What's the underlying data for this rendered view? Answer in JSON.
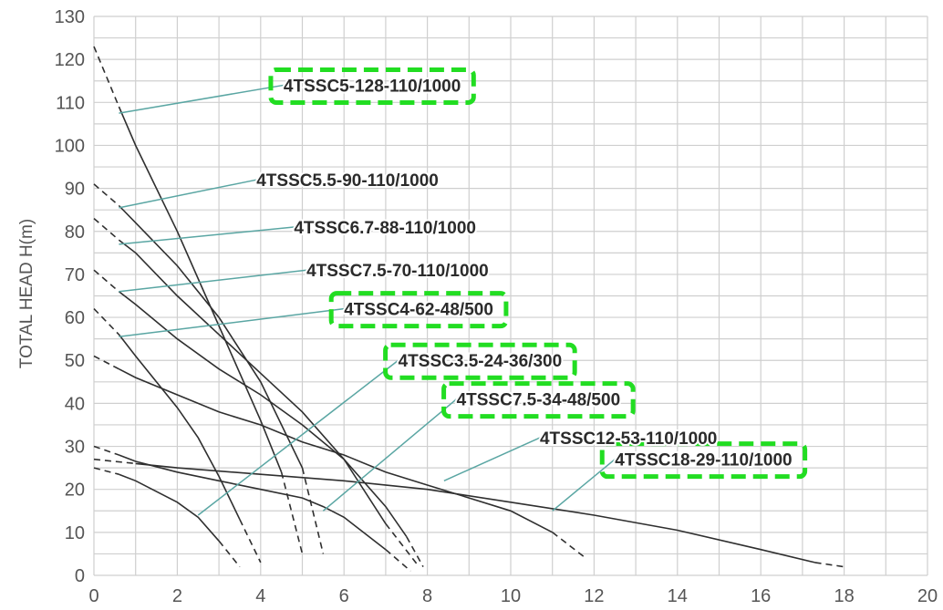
{
  "chart_data": {
    "type": "line",
    "title": "",
    "xlabel": "",
    "ylabel": "TOTAL HEAD H(m)",
    "xlim": [
      0,
      20
    ],
    "ylim": [
      0,
      130
    ],
    "x_ticks": [
      0,
      2,
      4,
      6,
      8,
      10,
      12,
      14,
      16,
      18,
      20
    ],
    "y_ticks": [
      0,
      10,
      20,
      30,
      40,
      50,
      60,
      70,
      80,
      90,
      100,
      110,
      120,
      130
    ],
    "grid": true,
    "grid_x_step": 1,
    "grid_y_step": 5,
    "highlight_color": "#22dd22",
    "series": [
      {
        "name": "4TSSC5-128-110/1000",
        "points": [
          [
            0,
            123
          ],
          [
            0.6,
            109
          ],
          [
            1,
            100
          ],
          [
            2,
            80
          ],
          [
            3,
            58
          ],
          [
            4,
            36
          ],
          [
            4.5,
            24
          ],
          [
            5,
            5
          ]
        ],
        "label_point": [
          4.55,
          114
        ],
        "leader_from": [
          0.6,
          107.5
        ],
        "highlighted": true
      },
      {
        "name": "4TSSC5.5-90-110/1000",
        "points": [
          [
            0,
            91
          ],
          [
            0.6,
            86
          ],
          [
            1,
            82
          ],
          [
            2,
            72
          ],
          [
            3,
            60
          ],
          [
            4,
            45
          ],
          [
            5,
            25
          ],
          [
            5.5,
            5
          ]
        ],
        "label_point": [
          3.9,
          92
        ],
        "leader_from": [
          0.6,
          85.5
        ],
        "highlighted": false
      },
      {
        "name": "4TSSC6.7-88-110/1000",
        "points": [
          [
            0,
            83
          ],
          [
            0.6,
            78
          ],
          [
            1,
            75
          ],
          [
            2,
            65
          ],
          [
            3,
            56
          ],
          [
            4,
            47
          ],
          [
            5,
            38
          ],
          [
            6,
            27
          ],
          [
            7,
            12
          ],
          [
            7.8,
            2
          ]
        ],
        "label_point": [
          4.8,
          81
        ],
        "leader_from": [
          0.6,
          77
        ],
        "highlighted": false
      },
      {
        "name": "4TSSC7.5-70-110/1000",
        "points": [
          [
            0,
            71
          ],
          [
            0.6,
            66
          ],
          [
            1,
            63
          ],
          [
            2,
            55
          ],
          [
            3,
            48
          ],
          [
            4,
            42
          ],
          [
            5,
            35
          ],
          [
            6,
            27
          ],
          [
            7,
            16
          ],
          [
            7.5,
            9
          ],
          [
            7.9,
            2
          ]
        ],
        "label_point": [
          5.1,
          71
        ],
        "leader_from": [
          0.6,
          66
        ],
        "highlighted": false
      },
      {
        "name": "4TSSC4-62-48/500",
        "points": [
          [
            0,
            62
          ],
          [
            0.6,
            56
          ],
          [
            1,
            51
          ],
          [
            2,
            39
          ],
          [
            2.5,
            32
          ],
          [
            3,
            23
          ],
          [
            3.5,
            13
          ],
          [
            4,
            3
          ]
        ],
        "label_point": [
          6,
          62
        ],
        "leader_from": [
          0.6,
          55.5
        ],
        "highlighted": true
      },
      {
        "name": "4TSSC3.5-24-36/300",
        "points": [
          [
            0,
            25
          ],
          [
            0.6,
            23.5
          ],
          [
            1,
            22
          ],
          [
            2,
            17
          ],
          [
            2.5,
            13.5
          ],
          [
            3,
            8
          ],
          [
            3.5,
            2
          ]
        ],
        "label_point": [
          7.3,
          50
        ],
        "leader_from": [
          2.5,
          14
        ],
        "highlighted": true
      },
      {
        "name": "4TSSC7.5-34-48/500",
        "points": [
          [
            0,
            30
          ],
          [
            0.6,
            28
          ],
          [
            1,
            26.5
          ],
          [
            2,
            24
          ],
          [
            3,
            22
          ],
          [
            4,
            20
          ],
          [
            5,
            18
          ],
          [
            5.5,
            16
          ],
          [
            6,
            13.5
          ],
          [
            7,
            6
          ],
          [
            7.6,
            1
          ]
        ],
        "label_point": [
          8.7,
          41
        ],
        "leader_from": [
          5.5,
          15
        ],
        "highlighted": true
      },
      {
        "name": "4TSSC12-53-110/1000",
        "points": [
          [
            0,
            51
          ],
          [
            0.6,
            48
          ],
          [
            1,
            46
          ],
          [
            2,
            42
          ],
          [
            3,
            38
          ],
          [
            4,
            35
          ],
          [
            5,
            31
          ],
          [
            6,
            28
          ],
          [
            7,
            24
          ],
          [
            8,
            21
          ],
          [
            9,
            18
          ],
          [
            10,
            15
          ],
          [
            11,
            10
          ],
          [
            11.8,
            4
          ]
        ],
        "label_point": [
          10.7,
          32
        ],
        "leader_from": [
          8.4,
          22
        ],
        "highlighted": false
      },
      {
        "name": "4TSSC18-29-110/1000",
        "points": [
          [
            0,
            27
          ],
          [
            1,
            26
          ],
          [
            2,
            25
          ],
          [
            4,
            23.5
          ],
          [
            6,
            22
          ],
          [
            8,
            20
          ],
          [
            10,
            17
          ],
          [
            12,
            14
          ],
          [
            14,
            10.5
          ],
          [
            16,
            6
          ],
          [
            17.3,
            3
          ],
          [
            18,
            2
          ]
        ],
        "label_point": [
          12.5,
          27
        ],
        "leader_from": [
          11,
          15
        ],
        "highlighted": true
      }
    ]
  }
}
